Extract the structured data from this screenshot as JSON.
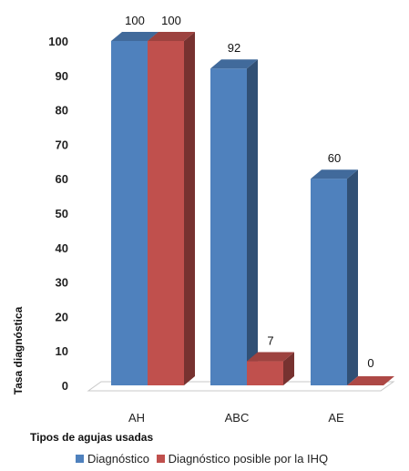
{
  "chart_data": {
    "type": "bar",
    "categories": [
      "AH",
      "ABC",
      "AE"
    ],
    "series": [
      {
        "name": "Diagnóstico",
        "values": [
          100,
          92,
          60
        ],
        "color": "#4F81BD"
      },
      {
        "name": "Diagnóstico posible por la IHQ",
        "values": [
          100,
          7,
          0
        ],
        "color": "#C0504D"
      }
    ],
    "xlabel": "Tipos de agujas usadas",
    "ylabel": "Tasa diagnóstica",
    "ylim": [
      0,
      100
    ],
    "yticks": [
      "0",
      "10",
      "20",
      "30",
      "40",
      "50",
      "60",
      "70",
      "80",
      "90",
      "100"
    ],
    "data_labels": [
      [
        "100",
        "92",
        "60"
      ],
      [
        "100",
        "7",
        "0"
      ]
    ],
    "legend_position": "bottom",
    "three_d": true
  }
}
